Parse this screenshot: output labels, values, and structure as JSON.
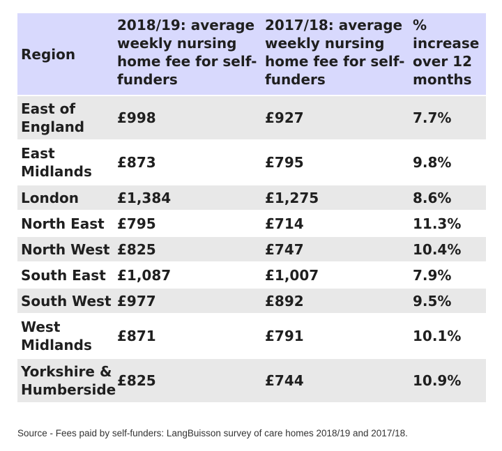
{
  "table": {
    "headers": {
      "region": "Region",
      "fee_2018_19": "2018/19: average weekly nursing home fee for self-funders",
      "fee_2017_18": "2017/18: average weekly nursing home fee for self-funders",
      "pct_increase": "% increase over 12 months"
    },
    "rows": [
      {
        "region": "East of England",
        "fee_2018_19": "£998",
        "fee_2017_18": "£927",
        "pct_increase": "7.7%"
      },
      {
        "region": "East Midlands",
        "fee_2018_19": "£873",
        "fee_2017_18": "£795",
        "pct_increase": "9.8%"
      },
      {
        "region": "London",
        "fee_2018_19": "£1,384",
        "fee_2017_18": "£1,275",
        "pct_increase": "8.6%"
      },
      {
        "region": "North East",
        "fee_2018_19": "£795",
        "fee_2017_18": "£714",
        "pct_increase": "11.3%"
      },
      {
        "region": "North West",
        "fee_2018_19": "£825",
        "fee_2017_18": "£747",
        "pct_increase": "10.4%"
      },
      {
        "region": "South East",
        "fee_2018_19": "£1,087",
        "fee_2017_18": "£1,007",
        "pct_increase": "7.9%"
      },
      {
        "region": "South West",
        "fee_2018_19": "£977",
        "fee_2017_18": "£892",
        "pct_increase": "9.5%"
      },
      {
        "region": "West Midlands",
        "fee_2018_19": "£871",
        "fee_2017_18": "£791",
        "pct_increase": "10.1%"
      },
      {
        "region": "Yorkshire & Humberside",
        "fee_2018_19": "£825",
        "fee_2017_18": "£744",
        "pct_increase": "10.9%"
      }
    ]
  },
  "source": "Source - Fees paid by self-funders: LangBuisson survey of care homes 2018/19 and 2017/18.",
  "colors": {
    "header_background": "#d8d9fd",
    "stripe_background": "#e8e8e8",
    "text": "#1f1f1f"
  }
}
